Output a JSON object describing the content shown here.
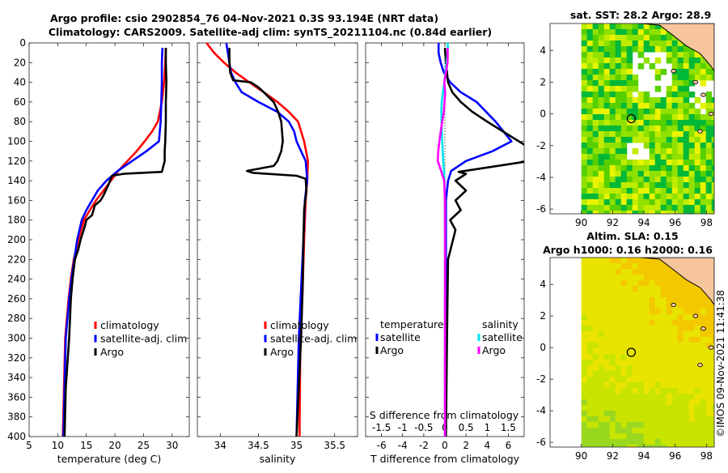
{
  "header": {
    "title_line1": "Argo profile: csio 2902854_76 04-Nov-2021 0.3S 93.194E (NRT data)",
    "title_line2": "Climatology: CARS2009. Satellite-adj clim: synTS_20211104.nc (0.84d earlier)"
  },
  "footer": {
    "watermark": "©IMOS 09-Nov-2021 11:41:38"
  },
  "chart_data": [
    {
      "type": "line",
      "panel": "temperature",
      "xlabel": "temperature (deg C)",
      "ylabel": "",
      "xlim": [
        5,
        33
      ],
      "ylim": [
        400,
        0
      ],
      "xticks": [
        5,
        10,
        15,
        20,
        25,
        30
      ],
      "yticks": [
        0,
        20,
        40,
        60,
        80,
        100,
        120,
        140,
        160,
        180,
        200,
        220,
        240,
        260,
        280,
        300,
        320,
        340,
        360,
        380,
        400
      ],
      "legend": [
        "climatology",
        "satellite-adj. clim",
        "Argo"
      ],
      "colors": {
        "climatology": "#ff0000",
        "satellite": "#0000ff",
        "argo": "#000000"
      },
      "series": [
        {
          "name": "climatology",
          "color": "#ff0000",
          "x": [
            28.9,
            28.8,
            28.6,
            28.2,
            27.5,
            26.5,
            25.2,
            23.8,
            22.2,
            20.6,
            19.3,
            18.0,
            16.7,
            15.6,
            14.6,
            13.6,
            12.8,
            12.3,
            11.9,
            11.6,
            11.3,
            11.1,
            10.9
          ],
          "y": [
            5,
            20,
            40,
            60,
            80,
            90,
            100,
            110,
            120,
            130,
            140,
            150,
            160,
            170,
            180,
            200,
            220,
            240,
            260,
            280,
            300,
            350,
            400
          ]
        },
        {
          "name": "satellite-adj. clim",
          "color": "#0000ff",
          "x": [
            28.3,
            28.2,
            28.2,
            28.1,
            28.0,
            27.7,
            25.5,
            23.0,
            20.5,
            18.5,
            17.0,
            16.0,
            15.0,
            14.2,
            13.4,
            12.9,
            12.4,
            12.0,
            11.7,
            11.4,
            11.2,
            11.0
          ],
          "y": [
            5,
            20,
            40,
            60,
            80,
            100,
            110,
            120,
            130,
            140,
            150,
            160,
            170,
            180,
            200,
            220,
            240,
            260,
            280,
            300,
            350,
            400
          ]
        },
        {
          "name": "Argo",
          "color": "#000000",
          "x": [
            28.9,
            28.9,
            29.0,
            28.9,
            28.9,
            28.8,
            28.7,
            28.7,
            28.2,
            21.5,
            19.5,
            18.8,
            18.0,
            17.5,
            16.5,
            16.0,
            15.0,
            14.8,
            14.0,
            13.6,
            13.0,
            12.6,
            12.3,
            12.0,
            11.4,
            11.2
          ],
          "y": [
            5,
            20,
            40,
            60,
            80,
            100,
            110,
            120,
            131,
            133,
            135,
            145,
            155,
            160,
            165,
            175,
            180,
            185,
            200,
            210,
            220,
            240,
            260,
            300,
            350,
            400
          ]
        }
      ]
    },
    {
      "type": "line",
      "panel": "salinity",
      "xlabel": "salinity",
      "xlim": [
        33.7,
        35.8
      ],
      "ylim": [
        400,
        0
      ],
      "xticks": [
        34,
        34.5,
        35,
        35.5
      ],
      "legend": [
        "climatology",
        "satellite-adj. clim",
        "Argo"
      ],
      "series": [
        {
          "name": "climatology",
          "color": "#ff0000",
          "x": [
            33.82,
            33.92,
            34.05,
            34.2,
            34.38,
            34.57,
            34.75,
            34.9,
            35.02,
            35.1,
            35.15,
            35.14,
            35.12,
            35.1,
            35.08,
            35.05,
            35.04
          ],
          "y": [
            0,
            10,
            20,
            30,
            40,
            50,
            60,
            70,
            80,
            100,
            120,
            140,
            160,
            200,
            250,
            300,
            400
          ]
        },
        {
          "name": "satellite-adj. clim",
          "color": "#0000ff",
          "x": [
            34.08,
            34.1,
            34.12,
            34.14,
            34.2,
            34.28,
            34.5,
            34.75,
            34.9,
            34.97,
            35.0,
            35.06,
            35.12,
            35.14,
            35.11,
            35.09,
            35.06,
            35.03,
            35.0
          ],
          "y": [
            0,
            10,
            20,
            30,
            40,
            50,
            60,
            70,
            80,
            90,
            100,
            110,
            120,
            140,
            160,
            200,
            250,
            300,
            400
          ]
        },
        {
          "name": "Argo",
          "color": "#000000",
          "x": [
            34.12,
            34.12,
            34.12,
            34.13,
            34.17,
            34.4,
            34.5,
            34.57,
            34.7,
            34.76,
            34.8,
            34.82,
            34.8,
            34.75,
            34.7,
            34.35,
            34.43,
            35.0,
            35.12,
            35.13,
            35.1,
            35.09,
            35.08,
            35.06,
            35.03,
            35.0
          ],
          "y": [
            5,
            10,
            20,
            30,
            38,
            40,
            45,
            50,
            60,
            70,
            80,
            100,
            110,
            120,
            125,
            130,
            132,
            135,
            138,
            150,
            170,
            200,
            250,
            300,
            350,
            400
          ]
        }
      ]
    },
    {
      "type": "line",
      "panel": "difference",
      "xlabel": "T difference from climatology",
      "xlabel2": "S difference from climatology",
      "xlim": [
        -7.5,
        7.5
      ],
      "ylim": [
        400,
        0
      ],
      "xticks": [
        -6,
        -4,
        -2,
        0,
        2,
        4,
        6
      ],
      "xticks_s": [
        -1.5,
        -1,
        -0.5,
        0,
        0.5,
        1,
        1.5
      ],
      "xticks_s_labels": [
        "-1.5",
        "-1",
        "-0.5",
        "0",
        "0.5",
        "1",
        "1.5"
      ],
      "legend_temperature_title": "temperature",
      "legend_salinity_title": "salinity",
      "legend": [
        "satellite",
        "Argo",
        "satellite",
        "Argo"
      ],
      "series": [
        {
          "name": "temperature satellite",
          "color": "#0000ff",
          "x": [
            -0.6,
            -0.6,
            -0.4,
            -0.1,
            0.5,
            1.5,
            3.0,
            4.8,
            6.3,
            4.5,
            2.0,
            0.6,
            0.3,
            0.1,
            0.1,
            0.1,
            0.1,
            0.05,
            0.05
          ],
          "y": [
            0,
            10,
            20,
            30,
            40,
            50,
            60,
            80,
            100,
            110,
            120,
            130,
            140,
            160,
            200,
            250,
            300,
            350,
            400
          ]
        },
        {
          "name": "temperature Argo",
          "color": "#000000",
          "x": [
            0.0,
            0.1,
            0.3,
            0.7,
            1.5,
            2.6,
            4.0,
            5.5,
            7.0,
            8.5,
            8.0,
            1.3,
            2.0,
            1.0,
            2.0,
            1.0,
            1.5,
            0.5,
            1.0,
            0.3,
            0.2,
            0.1
          ],
          "y": [
            5,
            20,
            40,
            50,
            60,
            70,
            80,
            90,
            100,
            110,
            120,
            131,
            133,
            140,
            150,
            160,
            170,
            180,
            190,
            220,
            300,
            400
          ]
        },
        {
          "name": "salinity satellite",
          "color": "#00e5ee",
          "x": [
            0.27,
            0.28,
            0.25,
            0.15,
            0.05,
            -0.05,
            -0.18,
            -0.3,
            -0.34,
            -0.32,
            -0.25,
            -0.16,
            -0.09,
            -0.04,
            0.0,
            0.01,
            0.01,
            0.0
          ],
          "y": [
            0,
            5,
            10,
            20,
            30,
            40,
            50,
            60,
            70,
            80,
            100,
            120,
            130,
            140,
            160,
            200,
            300,
            400
          ]
        },
        {
          "name": "salinity Argo",
          "color": "#ff00ff",
          "x": [
            0.25,
            0.27,
            0.25,
            0.1,
            -0.05,
            0.02,
            -0.03,
            -0.1,
            -0.25,
            -0.4,
            -0.52,
            -0.63,
            -0.67,
            -0.36,
            -0.06,
            0.0,
            0.01,
            0.0
          ],
          "y": [
            5,
            10,
            20,
            30,
            40,
            50,
            60,
            70,
            80,
            90,
            100,
            110,
            120,
            130,
            140,
            160,
            200,
            400
          ]
        }
      ]
    },
    {
      "type": "heatmap",
      "panel": "sst_map",
      "title": "sat. SST: 28.2 Argo: 28.9",
      "xlim": [
        88,
        98.5
      ],
      "ylim": [
        -6.3,
        5.7
      ],
      "xticks": [
        90,
        92,
        94,
        96,
        98
      ],
      "yticks": [
        4,
        2,
        0,
        -2,
        -4,
        -6
      ],
      "ytick_labels": [
        "4",
        "2",
        "0",
        "-2",
        "-4",
        "-6"
      ],
      "marker": {
        "x": 93.194,
        "y": -0.3
      },
      "colors": {
        "low": "#00b030",
        "mid": "#a0e000",
        "high": "#f0f000",
        "land": "#f8c8a0",
        "missing": "#ffffff"
      }
    },
    {
      "type": "heatmap",
      "panel": "sla_map",
      "title_line1": "Altim. SLA: 0.15",
      "title_line2": "Argo h1000: 0.16 h2000: 0.16",
      "xlim": [
        88,
        98.5
      ],
      "ylim": [
        -6.3,
        5.7
      ],
      "xticks": [
        90,
        92,
        94,
        96,
        98
      ],
      "yticks": [
        4,
        2,
        0,
        -2,
        -4,
        -6
      ],
      "ytick_labels": [
        "4",
        "2",
        "0",
        "-2",
        "-4",
        "-6"
      ],
      "marker": {
        "x": 93.194,
        "y": -0.3
      },
      "colors": {
        "low": "#40c830",
        "mid": "#c8e800",
        "high": "#f0c000",
        "land": "#f8c8a0"
      }
    }
  ]
}
